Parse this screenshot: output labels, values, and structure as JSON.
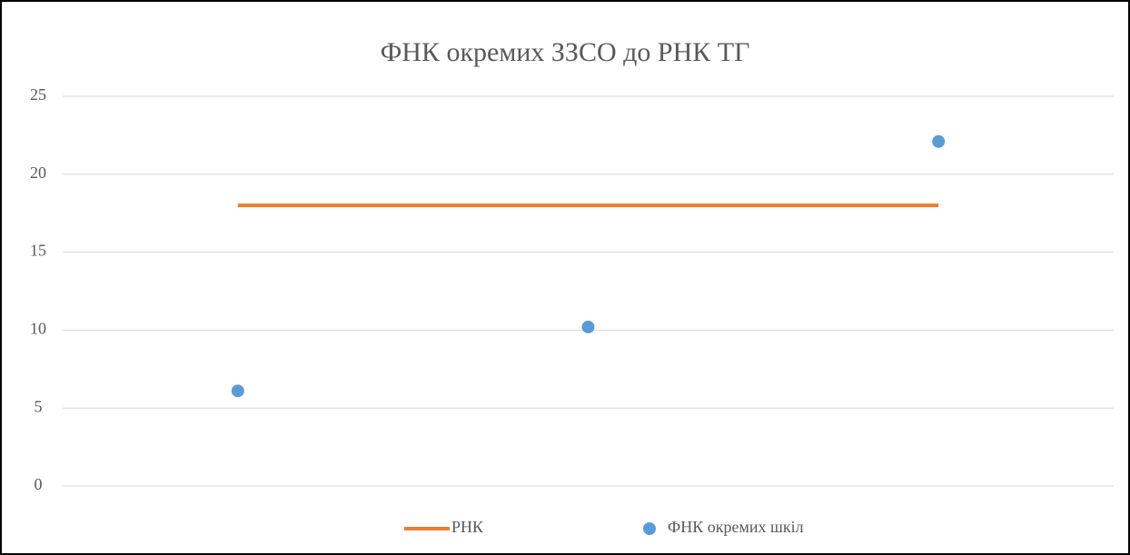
{
  "chart_data": {
    "type": "line",
    "title": "ФНК окремих ЗЗСО до РНК ТГ",
    "categories": [
      null,
      null,
      null
    ],
    "series": [
      {
        "name": "РНК",
        "type": "line",
        "color": "#ed7d31",
        "values": [
          18,
          18,
          18
        ]
      },
      {
        "name": "ФНК окремих шкіл",
        "type": "scatter",
        "color": "#5b9bd5",
        "values": [
          6.1,
          10.2,
          22.1
        ]
      }
    ],
    "ylim": [
      0,
      25
    ],
    "yticks": [
      0,
      5,
      10,
      15,
      20,
      25
    ],
    "grid": true,
    "legend": "bottom"
  }
}
